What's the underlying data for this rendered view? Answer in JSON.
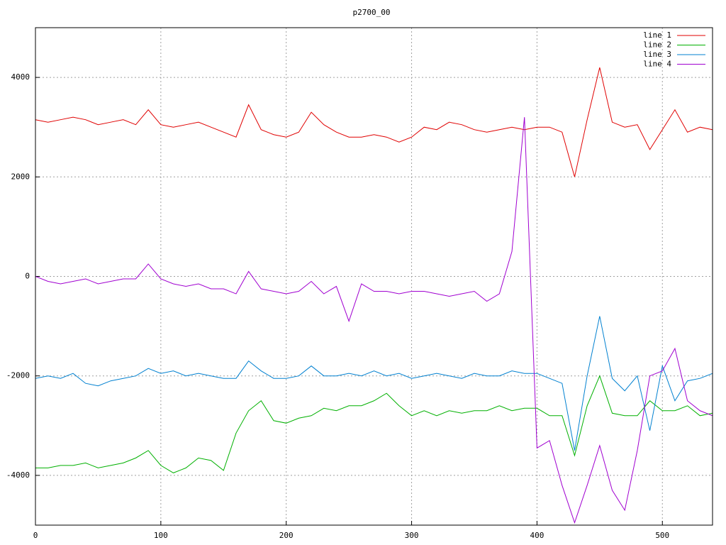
{
  "chart_data": {
    "type": "line",
    "title": "p2700_00",
    "xlim": [
      0,
      540
    ],
    "ylim": [
      -5000,
      5000
    ],
    "xticks": [
      0,
      100,
      200,
      300,
      400,
      500
    ],
    "yticks": [
      -4000,
      -2000,
      0,
      2000,
      4000
    ],
    "grid": true,
    "legend": "top-right",
    "x": [
      0,
      10,
      20,
      30,
      40,
      50,
      60,
      70,
      80,
      90,
      100,
      110,
      120,
      130,
      140,
      150,
      160,
      170,
      180,
      190,
      200,
      210,
      220,
      230,
      240,
      250,
      260,
      270,
      280,
      290,
      300,
      310,
      320,
      330,
      340,
      350,
      360,
      370,
      380,
      390,
      400,
      410,
      420,
      430,
      440,
      450,
      460,
      470,
      480,
      490,
      500,
      510,
      520,
      530,
      540
    ],
    "series": [
      {
        "name": "line 1",
        "color": "#e00000",
        "values": [
          3150,
          3100,
          3150,
          3200,
          3150,
          3050,
          3100,
          3150,
          3050,
          3350,
          3050,
          3000,
          3050,
          3100,
          3000,
          2900,
          2800,
          3450,
          2950,
          2850,
          2800,
          2900,
          3300,
          3050,
          2900,
          2800,
          2800,
          2850,
          2800,
          2700,
          2800,
          3000,
          2950,
          3100,
          3050,
          2950,
          2900,
          2950,
          3000,
          2950,
          3000,
          3000,
          2900,
          2000,
          3150,
          4200,
          3100,
          3000,
          3050,
          2550,
          2950,
          3350,
          2900,
          3000,
          2950
        ]
      },
      {
        "name": "line 2",
        "color": "#00b000",
        "values": [
          -3850,
          -3850,
          -3800,
          -3800,
          -3750,
          -3850,
          -3800,
          -3750,
          -3650,
          -3500,
          -3800,
          -3950,
          -3850,
          -3650,
          -3700,
          -3900,
          -3150,
          -2700,
          -2500,
          -2900,
          -2950,
          -2850,
          -2800,
          -2650,
          -2700,
          -2600,
          -2600,
          -2500,
          -2350,
          -2600,
          -2800,
          -2700,
          -2800,
          -2700,
          -2750,
          -2700,
          -2700,
          -2600,
          -2700,
          -2650,
          -2650,
          -2800,
          -2800,
          -3600,
          -2600,
          -2000,
          -2750,
          -2800,
          -2800,
          -2500,
          -2700,
          -2700,
          -2600,
          -2800,
          -2750
        ]
      },
      {
        "name": "line 3",
        "color": "#0080d0",
        "values": [
          -2050,
          -2000,
          -2050,
          -1950,
          -2150,
          -2200,
          -2100,
          -2050,
          -2000,
          -1850,
          -1950,
          -1900,
          -2000,
          -1950,
          -2000,
          -2050,
          -2050,
          -1700,
          -1900,
          -2050,
          -2050,
          -2000,
          -1800,
          -2000,
          -2000,
          -1950,
          -2000,
          -1900,
          -2000,
          -1950,
          -2050,
          -2000,
          -1950,
          -2000,
          -2050,
          -1950,
          -2000,
          -2000,
          -1900,
          -1950,
          -1950,
          -2050,
          -2150,
          -3500,
          -2000,
          -800,
          -2050,
          -2300,
          -2000,
          -3100,
          -1800,
          -2500,
          -2100,
          -2050,
          -1950
        ]
      },
      {
        "name": "line 4",
        "color": "#a000d0",
        "values": [
          0,
          -100,
          -150,
          -100,
          -50,
          -150,
          -100,
          -50,
          -50,
          250,
          -50,
          -150,
          -200,
          -150,
          -250,
          -250,
          -350,
          100,
          -250,
          -300,
          -350,
          -300,
          -100,
          -350,
          -200,
          -900,
          -150,
          -300,
          -300,
          -350,
          -300,
          -300,
          -350,
          -400,
          -350,
          -300,
          -500,
          -350,
          500,
          3200,
          -3450,
          -3300,
          -4200,
          -4950,
          -4200,
          -3400,
          -4300,
          -4700,
          -3500,
          -2000,
          -1900,
          -1450,
          -2500,
          -2700,
          -2800
        ]
      }
    ]
  }
}
